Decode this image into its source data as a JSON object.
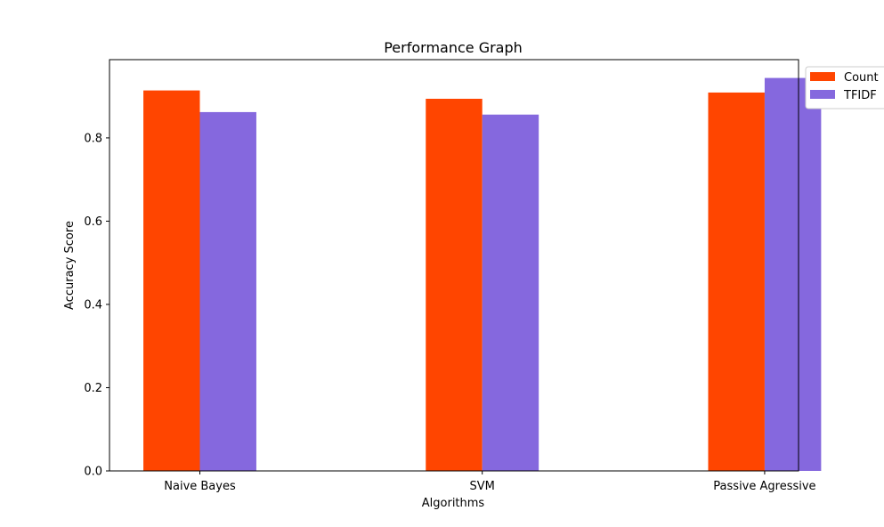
{
  "chart_data": {
    "type": "bar",
    "title": "Performance Graph",
    "xlabel": "Algorithms",
    "ylabel": "Accuracy Score",
    "categories": [
      "Naive Bayes",
      "SVM",
      "Passive Agressive"
    ],
    "series": [
      {
        "name": "Count",
        "color": "#ff4500",
        "values": [
          0.914,
          0.894,
          0.909
        ]
      },
      {
        "name": "TFIDF",
        "color": "#8568de",
        "values": [
          0.862,
          0.856,
          0.944
        ]
      }
    ],
    "ylim": [
      0,
      0.988
    ],
    "yticks": [
      0.0,
      0.2,
      0.4,
      0.6,
      0.8
    ],
    "ytick_labels": [
      "0.0",
      "0.2",
      "0.4",
      "0.6",
      "0.8"
    ],
    "grid": false,
    "legend_position": "upper right, outside plot"
  }
}
